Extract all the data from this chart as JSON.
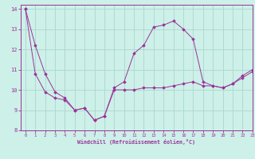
{
  "xlabel": "Windchill (Refroidissement éolien,°C)",
  "xlim": [
    -0.5,
    23
  ],
  "ylim": [
    8,
    14.2
  ],
  "yticks": [
    8,
    9,
    10,
    11,
    12,
    13,
    14
  ],
  "xticks": [
    0,
    1,
    2,
    3,
    4,
    5,
    6,
    7,
    8,
    9,
    10,
    11,
    12,
    13,
    14,
    15,
    16,
    17,
    18,
    19,
    20,
    21,
    22,
    23
  ],
  "background_color": "#cdf0e8",
  "line_color": "#993399",
  "grid_color": "#aad8cc",
  "series": [
    [
      14.0,
      10.8,
      9.9,
      9.6,
      9.5,
      9.0,
      9.1,
      8.5,
      8.7,
      10.0,
      10.0,
      10.0,
      10.1,
      10.1,
      10.1,
      10.2,
      10.3,
      10.4,
      10.2,
      10.2,
      10.1,
      10.3,
      10.6,
      10.9
    ],
    [
      14.0,
      12.2,
      10.8,
      9.9,
      9.6,
      9.0,
      9.1,
      8.5,
      8.7,
      10.1,
      10.4,
      11.8,
      12.2,
      13.1,
      13.2,
      13.4,
      13.0,
      12.5,
      10.4,
      10.2,
      10.1,
      10.3,
      10.7,
      11.0
    ]
  ]
}
